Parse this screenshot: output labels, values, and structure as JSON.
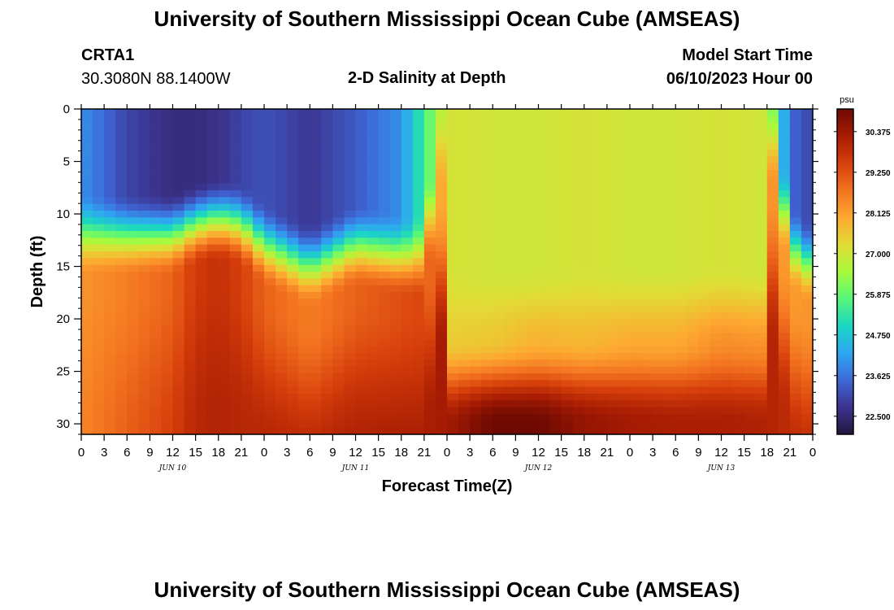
{
  "page": {
    "title_top": "University of Southern Mississippi Ocean Cube (AMSEAS)",
    "title_bottom": "University of Southern Mississippi Ocean Cube (AMSEAS)",
    "station_id": "CRTA1",
    "station_coords": "30.3080N  88.1400W",
    "plot_name": "2-D Salinity at Depth",
    "model_start_label": "Model Start Time",
    "model_start_value": "06/10/2023 Hour 00"
  },
  "chart_data": {
    "type": "heatmap",
    "title": "2-D Salinity at Depth",
    "xlabel": "Forecast Time(Z)",
    "ylabel": "Depth (ft)",
    "x_range_hours": [
      0,
      96
    ],
    "y_range_ft": [
      0,
      31
    ],
    "y_reversed": true,
    "x_tick_hours": [
      0,
      3,
      6,
      9,
      12,
      15,
      18,
      21,
      24,
      27,
      30,
      33,
      36,
      39,
      42,
      45,
      48,
      51,
      54,
      57,
      60,
      63,
      66,
      69,
      72,
      75,
      78,
      81,
      84,
      87,
      90,
      93,
      96
    ],
    "x_tick_labels": [
      "0",
      "3",
      "6",
      "9",
      "12",
      "15",
      "18",
      "21",
      "0",
      "3",
      "6",
      "9",
      "12",
      "15",
      "18",
      "21",
      "0",
      "3",
      "6",
      "9",
      "12",
      "15",
      "18",
      "21",
      "0",
      "3",
      "6",
      "9",
      "12",
      "15",
      "18",
      "21",
      "0"
    ],
    "y_ticks": [
      0,
      5,
      10,
      15,
      20,
      25,
      30
    ],
    "y_tick_labels": [
      "0",
      "5",
      "10",
      "15",
      "20",
      "25",
      "30"
    ],
    "day_labels": [
      {
        "text": "JUN 10",
        "hour": 12
      },
      {
        "text": "JUN 11",
        "hour": 36
      },
      {
        "text": "JUN 12",
        "hour": 60
      },
      {
        "text": "JUN 13",
        "hour": 84
      }
    ],
    "colorbar": {
      "unit": "psu",
      "min": 22.0,
      "max": 31.0,
      "tick_values": [
        22.5,
        23.625,
        24.75,
        25.875,
        27.0,
        28.125,
        29.25,
        30.375
      ],
      "tick_labels": [
        "22.500",
        "23.625",
        "24.750",
        "25.875",
        "27.000",
        "28.125",
        "29.250",
        "30.375"
      ],
      "colormap": [
        "#23173c",
        "#3c338e",
        "#3e68d8",
        "#2fa6f2",
        "#1ad6c2",
        "#58f679",
        "#a7fa3d",
        "#e1dc35",
        "#fda931",
        "#f37320",
        "#d63f0b",
        "#a81c03",
        "#6e0a02"
      ]
    },
    "column_profiles": {
      "hours": [
        0,
        6,
        12,
        15,
        18,
        21,
        24,
        30,
        36,
        42,
        45,
        48,
        54,
        60,
        66,
        72,
        78,
        84,
        90,
        93,
        96
      ],
      "halocline_depth_ft": [
        12,
        12,
        12,
        11,
        10.5,
        11,
        13,
        15,
        13,
        14,
        14,
        0,
        0,
        0,
        0,
        0,
        0,
        0,
        0,
        13,
        15
      ],
      "surface_salinity_psu": [
        24.0,
        23.0,
        22.6,
        22.6,
        22.7,
        23.0,
        23.2,
        22.8,
        23.3,
        24.0,
        25.5,
        27.1,
        27.0,
        27.0,
        27.1,
        27.0,
        27.0,
        27.1,
        27.0,
        23.5,
        23.0
      ],
      "bottom_salinity_psu": [
        28.5,
        29.0,
        29.5,
        30.0,
        30.1,
        30.0,
        30.0,
        30.0,
        30.1,
        30.2,
        30.2,
        30.3,
        31.0,
        31.0,
        30.5,
        30.3,
        30.2,
        30.2,
        30.1,
        29.9,
        29.9
      ],
      "mid_layer_salinity_psu": [
        28.3,
        28.6,
        29.0,
        29.6,
        29.8,
        29.5,
        29.0,
        28.6,
        29.0,
        29.3,
        29.4,
        27.5,
        27.6,
        27.9,
        27.8,
        28.0,
        28.0,
        28.4,
        28.3,
        28.2,
        28.3
      ]
    }
  }
}
